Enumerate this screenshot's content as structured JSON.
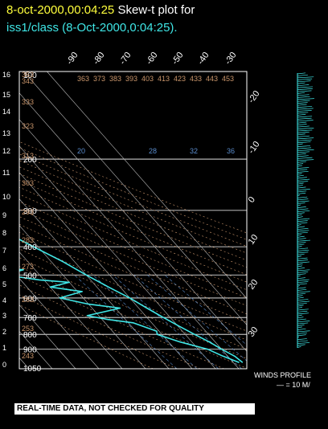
{
  "header": {
    "date_time": "8-oct-2000,00:04:25",
    "title_suffix": "Skew-t plot for",
    "subtitle": "iss1/class (8-Oct-2000,0:04:25)."
  },
  "colors": {
    "date": "#ffff3c",
    "title": "#ffffff",
    "subtitle": "#3fe6e6",
    "temperature": "#3fe6e6",
    "dewpoint": "#3fe6e6",
    "isobars": "#ffffff",
    "isotherms": "#bbbbbb",
    "dry_adiabats": "#c8946a",
    "moist_adiabats": "#b48cb4",
    "mixing_ratio": "#5a8ccc"
  },
  "wind_profile": {
    "label": "WINDS PROFILE",
    "scale": "— = 10 M/"
  },
  "banner": "REAL-TIME DATA, NOT CHECKED FOR QUALITY",
  "chart_data": {
    "type": "line",
    "title": "Skew-t plot",
    "x_axis": "temperature (deg C, skewed)",
    "y_axis": "pressure (mb, log scale)",
    "pressure_labels": [
      100,
      200,
      300,
      400,
      500,
      600,
      700,
      800,
      900,
      1050
    ],
    "height_km_labels": [
      0,
      1,
      2,
      3,
      4,
      5,
      6,
      7,
      8,
      9,
      10,
      11,
      12,
      13,
      14,
      15,
      16
    ],
    "isotherm_labels_top": [
      -90,
      -80,
      -70,
      -60,
      -50,
      -40,
      -30
    ],
    "isotherm_labels_right": [
      -20,
      -10,
      0,
      10,
      20,
      30
    ],
    "dry_adiabat_labels": [
      "243",
      "253",
      "263",
      "273",
      "283",
      "293",
      "303",
      "313",
      "323",
      "333",
      "343",
      "353",
      "363",
      "373",
      "383",
      "393",
      "403",
      "413",
      "423",
      "433",
      "443",
      "453"
    ],
    "mixing_ratio_labels": [
      "20",
      "28",
      "32",
      "36"
    ],
    "ylim": [
      1050,
      100
    ],
    "series": [
      {
        "name": "temperature",
        "points": [
          [
            1000,
            14
          ],
          [
            950,
            13
          ],
          [
            900,
            10
          ],
          [
            850,
            7.5
          ],
          [
            800,
            4
          ],
          [
            750,
            0.5
          ],
          [
            700,
            -3
          ],
          [
            650,
            -6.5
          ],
          [
            600,
            -10
          ],
          [
            550,
            -15
          ],
          [
            500,
            -20
          ],
          [
            450,
            -25
          ],
          [
            400,
            -32
          ],
          [
            350,
            -39.5
          ],
          [
            300,
            -48
          ],
          [
            250,
            -55
          ],
          [
            200,
            -58
          ],
          [
            150,
            -60
          ],
          [
            100,
            -63
          ]
        ]
      },
      {
        "name": "dewpoint",
        "points": [
          [
            1000,
            12.5
          ],
          [
            950,
            8
          ],
          [
            900,
            4
          ],
          [
            850,
            -5
          ],
          [
            800,
            -12
          ],
          [
            780,
            -11
          ],
          [
            730,
            -18
          ],
          [
            710,
            -28
          ],
          [
            690,
            -35
          ],
          [
            650,
            -18
          ],
          [
            630,
            -30
          ],
          [
            600,
            -40
          ],
          [
            570,
            -28
          ],
          [
            550,
            -40
          ],
          [
            530,
            -30
          ],
          [
            520,
            -42
          ],
          [
            500,
            -55
          ],
          [
            480,
            -45
          ],
          [
            470,
            -57
          ],
          [
            460,
            -52
          ],
          [
            450,
            -58
          ],
          [
            430,
            -58
          ],
          [
            400,
            -57
          ],
          [
            350,
            -58
          ],
          [
            300,
            -72
          ],
          [
            250,
            -78
          ],
          [
            200,
            -80
          ],
          [
            150,
            -86
          ],
          [
            120,
            -85
          ],
          [
            100,
            -83
          ]
        ]
      }
    ]
  }
}
